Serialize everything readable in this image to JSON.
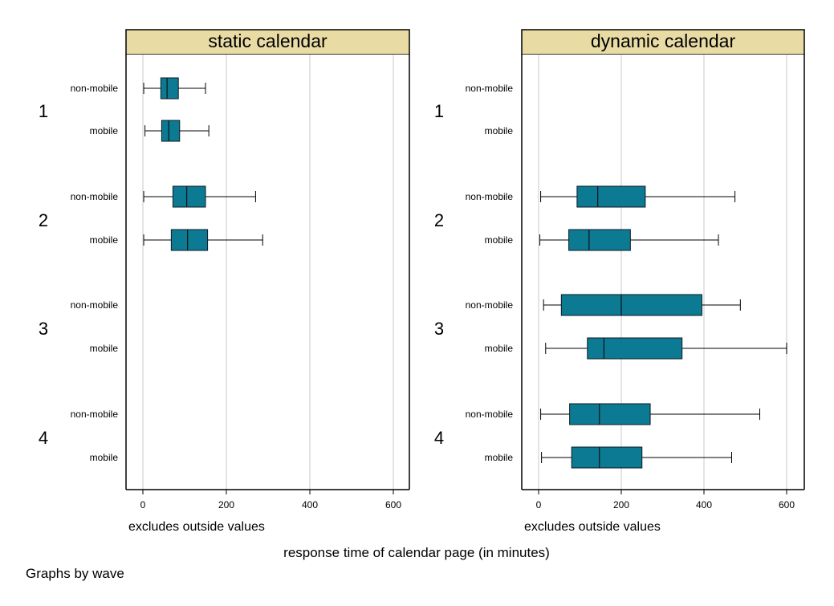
{
  "chart_data": {
    "type": "box",
    "xlabel": "response time of calendar page (in minutes)",
    "note": "excludes outside values",
    "footnote": "Graphs by wave",
    "xlim": [
      0,
      600
    ],
    "xticks": [
      0,
      200,
      400,
      600
    ],
    "box_color": "#0d7a94",
    "strip_color": "#e8dba4",
    "grid": true,
    "groups": [
      "1",
      "2",
      "3",
      "4"
    ],
    "categories": [
      "non-mobile",
      "mobile"
    ],
    "panels": [
      {
        "title": "static calendar",
        "boxes": [
          {
            "group": "1",
            "category": "non-mobile",
            "whisker_low": 2,
            "q1": 43,
            "median": 58,
            "q3": 85,
            "whisker_high": 150
          },
          {
            "group": "1",
            "category": "mobile",
            "whisker_low": 5,
            "q1": 45,
            "median": 62,
            "q3": 88,
            "whisker_high": 158
          },
          {
            "group": "2",
            "category": "non-mobile",
            "whisker_low": 2,
            "q1": 72,
            "median": 105,
            "q3": 150,
            "whisker_high": 270
          },
          {
            "group": "2",
            "category": "mobile",
            "whisker_low": 2,
            "q1": 68,
            "median": 107,
            "q3": 155,
            "whisker_high": 287
          }
        ]
      },
      {
        "title": "dynamic calendar",
        "boxes": [
          {
            "group": "2",
            "category": "non-mobile",
            "whisker_low": 5,
            "q1": 93,
            "median": 143,
            "q3": 258,
            "whisker_high": 475
          },
          {
            "group": "2",
            "category": "mobile",
            "whisker_low": 3,
            "q1": 73,
            "median": 122,
            "q3": 222,
            "whisker_high": 435
          },
          {
            "group": "3",
            "category": "non-mobile",
            "whisker_low": 12,
            "q1": 55,
            "median": 200,
            "q3": 395,
            "whisker_high": 488
          },
          {
            "group": "3",
            "category": "mobile",
            "whisker_low": 17,
            "q1": 118,
            "median": 158,
            "q3": 347,
            "whisker_high": 600
          },
          {
            "group": "4",
            "category": "non-mobile",
            "whisker_low": 5,
            "q1": 75,
            "median": 147,
            "q3": 270,
            "whisker_high": 535
          },
          {
            "group": "4",
            "category": "mobile",
            "whisker_low": 7,
            "q1": 80,
            "median": 147,
            "q3": 250,
            "whisker_high": 467
          }
        ]
      }
    ]
  }
}
